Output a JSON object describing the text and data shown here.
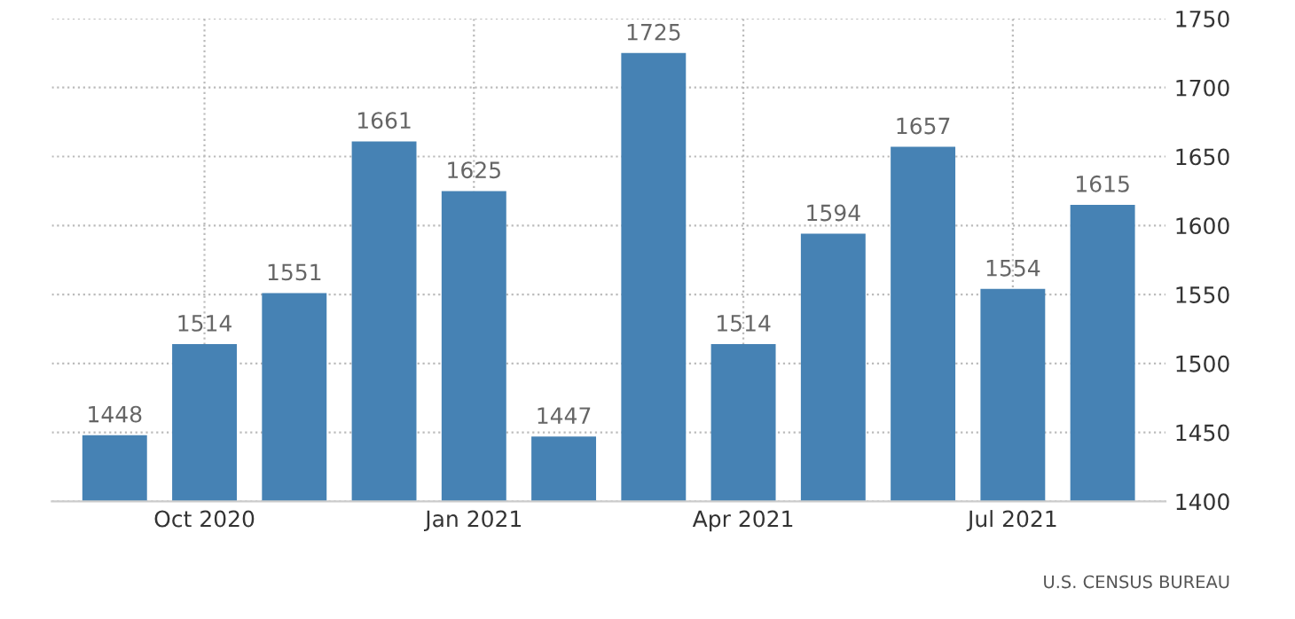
{
  "chart_data": {
    "type": "bar",
    "categories": [
      null,
      "Oct 2020",
      null,
      null,
      "Jan 2021",
      null,
      null,
      "Apr 2021",
      null,
      null,
      "Jul 2021",
      null
    ],
    "values": [
      1448,
      1514,
      1551,
      1661,
      1625,
      1447,
      1725,
      1514,
      1594,
      1657,
      1554,
      1615
    ],
    "color": "#4682b4",
    "ylim": [
      1400,
      1750
    ],
    "yticks": [
      1400,
      1450,
      1500,
      1550,
      1600,
      1650,
      1700,
      1750
    ],
    "grid": true,
    "data_labels": true,
    "annotations": [
      "U.S. CENSUS BUREAU"
    ]
  }
}
